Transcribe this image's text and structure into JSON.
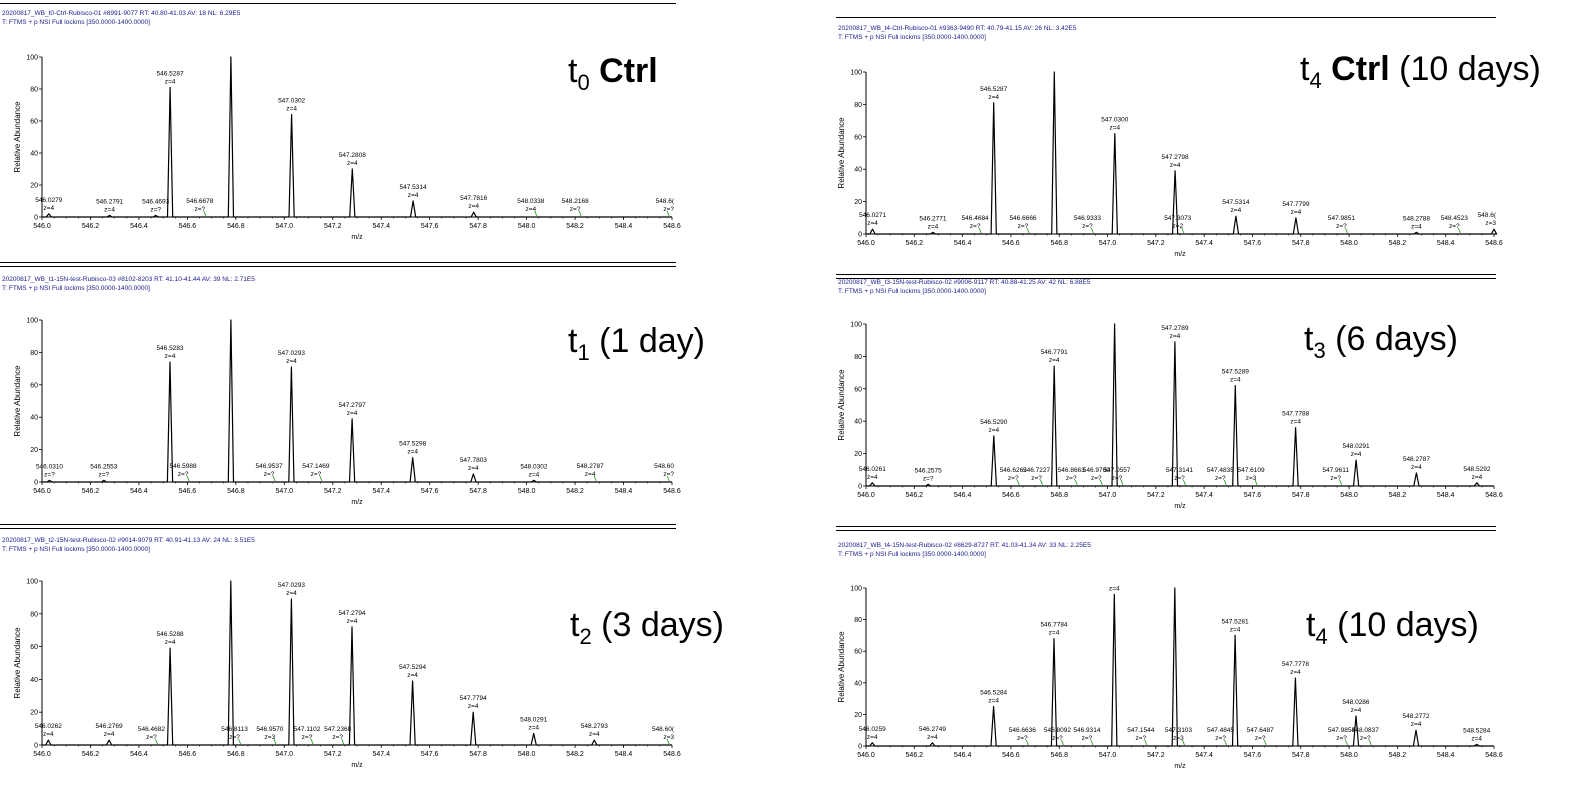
{
  "chart_data": [
    {
      "type": "line",
      "header": [
        "20200817_WB_t0-Ctrl-Rubisco-01 #8991-9077  RT: 40.80-41.03  AV: 18  NL: 6.29E5",
        "T: FTMS + p NSI Full lockms [350.0000-1400.0000]"
      ],
      "label": {
        "prefix": "t",
        "sub": "0",
        "bold": " Ctrl",
        "rest": ""
      },
      "xlabel": "m/z",
      "ylabel": "Relative Abundance",
      "xlim": [
        546.0,
        548.6
      ],
      "ylim": [
        0,
        100
      ],
      "xticks": [
        "546.0",
        "546.2",
        "546.4",
        "546.6",
        "546.8",
        "547.0",
        "547.2",
        "547.4",
        "547.6",
        "547.8",
        "548.0",
        "548.2",
        "548.4",
        "548.6"
      ],
      "yticks": [
        "0",
        "20",
        "40",
        "60",
        "80",
        "100"
      ],
      "peaks": [
        {
          "x": 546.0279,
          "y": 2,
          "mz": "546.0279",
          "z": "z=4"
        },
        {
          "x": 546.2791,
          "y": 1,
          "mz": "546.2791",
          "z": "z=4"
        },
        {
          "x": 546.4693,
          "y": 1,
          "mz": "546.4693",
          "z": "z=?"
        },
        {
          "x": 546.5287,
          "y": 81,
          "mz": "546.5287",
          "z": "z=4"
        },
        {
          "x": 546.6678,
          "y": 0,
          "mz": "546.6678",
          "z": "z=?"
        },
        {
          "x": 546.7797,
          "y": 100,
          "mz": "",
          "z": ""
        },
        {
          "x": 547.0302,
          "y": 64,
          "mz": "547.0302",
          "z": "z=4"
        },
        {
          "x": 547.2808,
          "y": 30,
          "mz": "547.2808",
          "z": "z=4"
        },
        {
          "x": 547.5314,
          "y": 10,
          "mz": "547.5314",
          "z": "z=4"
        },
        {
          "x": 547.7816,
          "y": 3,
          "mz": "547.7816",
          "z": "z=4"
        },
        {
          "x": 548.0338,
          "y": 0,
          "mz": "548.0338",
          "z": "z=4"
        },
        {
          "x": 548.2168,
          "y": 0,
          "mz": "548.2168",
          "z": "z=?"
        },
        {
          "x": 548.6,
          "y": 0,
          "mz": "548.6(",
          "z": "z=?"
        }
      ]
    },
    {
      "type": "line",
      "header": [
        "20200817_WB_t1-15N-test-Rubisco-03 #8102-8203  RT: 41.10-41.44  AV: 39  NL: 2.71E5",
        "T: FTMS + p NSI Full lockms [350.0000-1400.0000]"
      ],
      "label": {
        "prefix": "t",
        "sub": "1",
        "bold": "",
        "rest": " (1 day)"
      },
      "xlabel": "m/z",
      "ylabel": "Relative Abundance",
      "xlim": [
        546.0,
        548.6
      ],
      "ylim": [
        0,
        100
      ],
      "xticks": [
        "546.0",
        "546.2",
        "546.4",
        "546.6",
        "546.8",
        "547.0",
        "547.2",
        "547.4",
        "547.6",
        "547.8",
        "548.0",
        "548.2",
        "548.4",
        "548.6"
      ],
      "yticks": [
        "0",
        "20",
        "40",
        "60",
        "80",
        "100"
      ],
      "peaks": [
        {
          "x": 546.031,
          "y": 1,
          "mz": "546.0310",
          "z": "z=?"
        },
        {
          "x": 546.2553,
          "y": 1,
          "mz": "546.2553",
          "z": "z=?"
        },
        {
          "x": 546.5283,
          "y": 74,
          "mz": "546.5283",
          "z": "z=4"
        },
        {
          "x": 546.5988,
          "y": 0,
          "mz": "546.5988",
          "z": "z=?"
        },
        {
          "x": 546.7794,
          "y": 100,
          "mz": "",
          "z": ""
        },
        {
          "x": 546.9537,
          "y": 0,
          "mz": "546.9537",
          "z": "z=?"
        },
        {
          "x": 547.0293,
          "y": 71,
          "mz": "547.0293",
          "z": "z=4"
        },
        {
          "x": 547.1469,
          "y": 0,
          "mz": "547.1469",
          "z": "z=?"
        },
        {
          "x": 547.2797,
          "y": 39,
          "mz": "547.2797",
          "z": "z=4"
        },
        {
          "x": 547.5298,
          "y": 15,
          "mz": "547.5298",
          "z": "z=4"
        },
        {
          "x": 547.7803,
          "y": 5,
          "mz": "547.7803",
          "z": "z=4"
        },
        {
          "x": 548.0302,
          "y": 1,
          "mz": "548.0302",
          "z": "z=4"
        },
        {
          "x": 548.2787,
          "y": 0,
          "mz": "548.2787",
          "z": "z=4"
        },
        {
          "x": 548.6,
          "y": 0,
          "mz": "548.60",
          "z": "z=?"
        }
      ]
    },
    {
      "type": "line",
      "header": [
        "20200817_WB_t2-15N-test-Rubisco-02 #9014-9079  RT: 40.91-41.13  AV: 24  NL: 3.51E5",
        "T: FTMS + p NSI Full lockms [350.0000-1400.0000]"
      ],
      "label": {
        "prefix": "t",
        "sub": "2",
        "bold": "",
        "rest": " (3 days)"
      },
      "xlabel": "m/z",
      "ylabel": "Relative Abundance",
      "xlim": [
        546.0,
        548.6
      ],
      "ylim": [
        0,
        100
      ],
      "xticks": [
        "546.0",
        "546.2",
        "546.4",
        "546.6",
        "546.8",
        "547.0",
        "547.2",
        "547.4",
        "547.6",
        "547.8",
        "548.0",
        "548.2",
        "548.4",
        "548.6"
      ],
      "yticks": [
        "0",
        "20",
        "40",
        "60",
        "80",
        "100"
      ],
      "peaks": [
        {
          "x": 546.0262,
          "y": 3,
          "mz": "546.0262",
          "z": "z=4"
        },
        {
          "x": 546.2769,
          "y": 3,
          "mz": "546.2769",
          "z": "z=4"
        },
        {
          "x": 546.4682,
          "y": 0,
          "mz": "546.4682",
          "z": "z=?"
        },
        {
          "x": 546.5288,
          "y": 59,
          "mz": "546.5288",
          "z": "z=4"
        },
        {
          "x": 546.779,
          "y": 100,
          "mz": "",
          "z": ""
        },
        {
          "x": 546.8113,
          "y": 0,
          "mz": "546.8113",
          "z": "z=?"
        },
        {
          "x": 546.957,
          "y": 0,
          "mz": "546.9570",
          "z": "z=3"
        },
        {
          "x": 547.0293,
          "y": 89,
          "mz": "547.0293",
          "z": "z=4"
        },
        {
          "x": 547.1102,
          "y": 0,
          "mz": "547.1102",
          "z": "z=?"
        },
        {
          "x": 547.2368,
          "y": 0,
          "mz": "547.2368",
          "z": "z=?"
        },
        {
          "x": 547.2794,
          "y": 72,
          "mz": "547.2794",
          "z": "z=4"
        },
        {
          "x": 547.5294,
          "y": 39,
          "mz": "547.5294",
          "z": "z=4"
        },
        {
          "x": 547.7794,
          "y": 20,
          "mz": "547.7794",
          "z": "z=4"
        },
        {
          "x": 548.0291,
          "y": 7,
          "mz": "548.0291",
          "z": "z=4"
        },
        {
          "x": 548.2793,
          "y": 3,
          "mz": "548.2793",
          "z": "z=4"
        },
        {
          "x": 548.6,
          "y": 0,
          "mz": "548.60(",
          "z": "z=3"
        }
      ]
    },
    {
      "type": "line",
      "header": [
        "20200817_WB_t4-Ctrl-Rubisco-01 #9363-9490  RT: 40.79-41.15  AV: 26  NL: 3.42E5",
        "T: FTMS + p NSI Full lockms [350.0000-1400.0000]"
      ],
      "label": {
        "prefix": "t",
        "sub": "4",
        "bold": " Ctrl",
        "rest": " (10 days)"
      },
      "xlabel": "m/z",
      "ylabel": "Relative Abundance",
      "xlim": [
        546.0,
        548.6
      ],
      "ylim": [
        0,
        100
      ],
      "xticks": [
        "546.0",
        "546.2",
        "546.4",
        "546.6",
        "546.8",
        "547.0",
        "547.2",
        "547.4",
        "547.6",
        "547.8",
        "548.0",
        "548.2",
        "548.4",
        "548.6"
      ],
      "yticks": [
        "0",
        "20",
        "40",
        "60",
        "80",
        "100"
      ],
      "peaks": [
        {
          "x": 546.0271,
          "y": 3,
          "mz": "546.0271",
          "z": "z=4"
        },
        {
          "x": 546.2771,
          "y": 1,
          "mz": "546.2771",
          "z": "z=4"
        },
        {
          "x": 546.4684,
          "y": 0,
          "mz": "546.4684",
          "z": "z=?"
        },
        {
          "x": 546.5287,
          "y": 81,
          "mz": "546.5287",
          "z": "z=4"
        },
        {
          "x": 546.6666,
          "y": 0,
          "mz": "546.6666",
          "z": "z=?"
        },
        {
          "x": 546.7794,
          "y": 100,
          "mz": "",
          "z": ""
        },
        {
          "x": 546.9333,
          "y": 0,
          "mz": "546.9333",
          "z": "z=?"
        },
        {
          "x": 547.03,
          "y": 62,
          "mz": "547.0300",
          "z": "z=4"
        },
        {
          "x": 547.2798,
          "y": 39,
          "mz": "547.2798",
          "z": "z=4"
        },
        {
          "x": 547.3073,
          "y": 0,
          "mz": "547.3073",
          "z": "z=2"
        },
        {
          "x": 547.5314,
          "y": 11,
          "mz": "547.5314",
          "z": "z=4"
        },
        {
          "x": 547.7799,
          "y": 10,
          "mz": "547.7799",
          "z": "z=4"
        },
        {
          "x": 547.9851,
          "y": 0,
          "mz": "547.9851",
          "z": "z=?"
        },
        {
          "x": 548.2788,
          "y": 1,
          "mz": "548.2788",
          "z": "z=4"
        },
        {
          "x": 548.4523,
          "y": 0,
          "mz": "548.4523",
          "z": "z=?"
        },
        {
          "x": 548.6,
          "y": 3,
          "mz": "548.6(",
          "z": "z=3"
        }
      ]
    },
    {
      "type": "line",
      "header": [
        "20200817_WB_t3-15N-test-Rubisco-02 #9006-9117  RT: 40.88-41.25  AV: 42  NL: 6.88E5",
        "T: FTMS + p NSI Full lockms [350.0000-1400.0000]"
      ],
      "label": {
        "prefix": "t",
        "sub": "3",
        "bold": "",
        "rest": " (6 days)"
      },
      "xlabel": "m/z",
      "ylabel": "Relative Abundance",
      "xlim": [
        546.0,
        548.6
      ],
      "ylim": [
        0,
        100
      ],
      "xticks": [
        "546.0",
        "546.2",
        "546.4",
        "546.6",
        "546.8",
        "547.0",
        "547.2",
        "547.4",
        "547.6",
        "547.8",
        "548.0",
        "548.2",
        "548.4",
        "548.6"
      ],
      "yticks": [
        "0",
        "20",
        "40",
        "60",
        "80",
        "100"
      ],
      "peaks": [
        {
          "x": 546.0261,
          "y": 2,
          "mz": "546.0261",
          "z": "z=4"
        },
        {
          "x": 546.2575,
          "y": 1,
          "mz": "546.2575",
          "z": "z=?"
        },
        {
          "x": 546.529,
          "y": 31,
          "mz": "546.5290",
          "z": "z=4"
        },
        {
          "x": 546.6262,
          "y": 0,
          "mz": "546.6262",
          "z": "z=?"
        },
        {
          "x": 546.7227,
          "y": 0,
          "mz": "546.7227",
          "z": "z=?"
        },
        {
          "x": 546.7791,
          "y": 74,
          "mz": "546.7791",
          "z": "z=4"
        },
        {
          "x": 546.8663,
          "y": 0,
          "mz": "546.8663",
          "z": "z=?"
        },
        {
          "x": 546.97,
          "y": 0,
          "mz": "546.9700",
          "z": "z=?"
        },
        {
          "x": 547.0292,
          "y": 100,
          "mz": "",
          "z": ""
        },
        {
          "x": 547.0557,
          "y": 0,
          "mz": "547.0557",
          "z": "z=?"
        },
        {
          "x": 547.2789,
          "y": 89,
          "mz": "547.2789",
          "z": "z=4"
        },
        {
          "x": 547.3141,
          "y": 0,
          "mz": "547.3141",
          "z": "z=?"
        },
        {
          "x": 547.4835,
          "y": 0,
          "mz": "547.4835",
          "z": "z=?"
        },
        {
          "x": 547.5289,
          "y": 62,
          "mz": "547.5289",
          "z": "z=4"
        },
        {
          "x": 547.6109,
          "y": 0,
          "mz": "547.6109",
          "z": "z=3"
        },
        {
          "x": 547.7788,
          "y": 36,
          "mz": "547.7788",
          "z": "z=4"
        },
        {
          "x": 547.9611,
          "y": 0,
          "mz": "547.9611",
          "z": "z=?"
        },
        {
          "x": 548.0291,
          "y": 16,
          "mz": "548.0291",
          "z": "z=4"
        },
        {
          "x": 548.2787,
          "y": 8,
          "mz": "548.2787",
          "z": "z=4"
        },
        {
          "x": 548.5292,
          "y": 2,
          "mz": "548.5292",
          "z": "z=4"
        }
      ]
    },
    {
      "type": "line",
      "header": [
        "20200817_WB_t4-15N-test-Rubisco-02 #8629-8727  RT: 41.03-41.34  AV: 33  NL: 2.25E5",
        "T: FTMS + p NSI Full lockms [350.0000-1400.0000]"
      ],
      "label": {
        "prefix": "t",
        "sub": "4",
        "bold": "",
        "rest": " (10 days)"
      },
      "xlabel": "m/z",
      "ylabel": "Relative Abundance",
      "xlim": [
        546.0,
        548.6
      ],
      "ylim": [
        0,
        100
      ],
      "xticks": [
        "546.0",
        "546.2",
        "546.4",
        "546.6",
        "546.8",
        "547.0",
        "547.2",
        "547.4",
        "547.6",
        "547.8",
        "548.0",
        "548.2",
        "548.4",
        "548.6"
      ],
      "yticks": [
        "0",
        "20",
        "40",
        "60",
        "80",
        "100"
      ],
      "peaks": [
        {
          "x": 546.0259,
          "y": 2,
          "mz": "546.0259",
          "z": "z=4"
        },
        {
          "x": 546.2749,
          "y": 2,
          "mz": "546.2749",
          "z": "z=4"
        },
        {
          "x": 546.5284,
          "y": 25,
          "mz": "546.5284",
          "z": "z=4"
        },
        {
          "x": 546.6636,
          "y": 0,
          "mz": "546.6636",
          "z": "z=?"
        },
        {
          "x": 546.7784,
          "y": 68,
          "mz": "546.7784",
          "z": "z=4"
        },
        {
          "x": 546.8092,
          "y": 0,
          "mz": "546.8092",
          "z": "z=?"
        },
        {
          "x": 546.9314,
          "y": 0,
          "mz": "546.9314",
          "z": "z=?"
        },
        {
          "x": 547.0281,
          "y": 96,
          "mz": "",
          "z": "z=4"
        },
        {
          "x": 547.1544,
          "y": 0,
          "mz": "547.1544",
          "z": "z=?"
        },
        {
          "x": 547.2785,
          "y": 100,
          "mz": "",
          "z": ""
        },
        {
          "x": 547.3103,
          "y": 0,
          "mz": "547.3103",
          "z": "z=3"
        },
        {
          "x": 547.4845,
          "y": 0,
          "mz": "547.4845",
          "z": "z=?"
        },
        {
          "x": 547.5281,
          "y": 70,
          "mz": "547.5281",
          "z": "z=4"
        },
        {
          "x": 547.6487,
          "y": 0,
          "mz": "547.6487",
          "z": "z=?"
        },
        {
          "x": 547.7778,
          "y": 43,
          "mz": "547.7778",
          "z": "z=4"
        },
        {
          "x": 547.9854,
          "y": 0,
          "mz": "547.9854",
          "z": "z=?"
        },
        {
          "x": 548.0286,
          "y": 19,
          "mz": "548.0286",
          "z": "z=4"
        },
        {
          "x": 548.0837,
          "y": 0,
          "mz": "548.0837",
          "z": "z=?"
        },
        {
          "x": 548.2772,
          "y": 10,
          "mz": "548.2772",
          "z": "z=4"
        },
        {
          "x": 548.5284,
          "y": 1,
          "mz": "548.5284",
          "z": "z=4"
        }
      ]
    }
  ]
}
